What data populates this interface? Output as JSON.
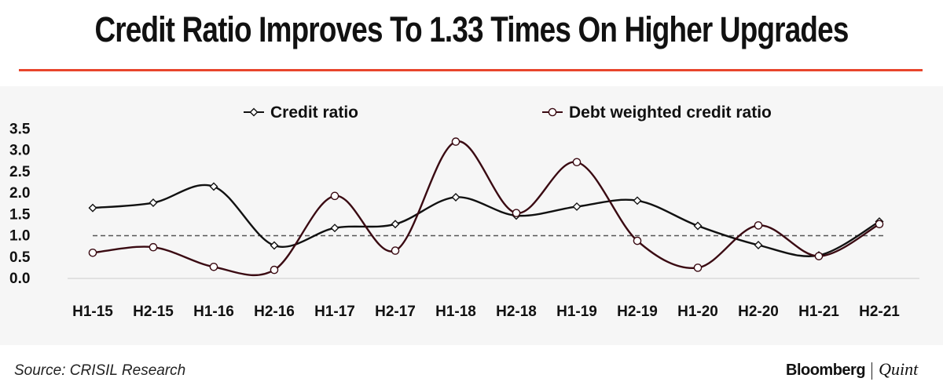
{
  "title": "Credit Ratio Improves To 1.33 Times On Higher Upgrades",
  "source": "Source: CRISIL Research",
  "logo": {
    "brand": "Bloomberg",
    "sub": "Quint"
  },
  "colors": {
    "accent_rule": "#e8452c",
    "series1": "#111111",
    "series2": "#3a0a12",
    "reference_line": "#555555"
  },
  "chart_data": {
    "type": "line",
    "categories": [
      "H1-15",
      "H2-15",
      "H1-16",
      "H2-16",
      "H1-17",
      "H2-17",
      "H1-18",
      "H2-18",
      "H1-19",
      "H2-19",
      "H1-20",
      "H2-20",
      "H1-21",
      "H2-21"
    ],
    "series": [
      {
        "name": "Credit ratio",
        "marker": "diamond",
        "color": "#111111",
        "values": [
          1.65,
          1.77,
          2.15,
          0.77,
          1.18,
          1.27,
          1.9,
          1.47,
          1.68,
          1.82,
          1.23,
          0.78,
          0.54,
          1.33
        ]
      },
      {
        "name": "Debt weighted credit ratio",
        "marker": "circle",
        "color": "#3a0a12",
        "values": [
          0.6,
          0.73,
          0.27,
          0.2,
          1.93,
          0.65,
          3.2,
          1.53,
          2.72,
          0.88,
          0.25,
          1.24,
          0.52,
          1.27
        ]
      }
    ],
    "reference_line": {
      "y": 1.0,
      "style": "dashed"
    },
    "yticks": [
      "3.5",
      "3.0",
      "2.5",
      "2.0",
      "1.5",
      "1.0",
      "0.5",
      "0.0"
    ],
    "ylim": [
      0,
      3.5
    ],
    "xlabel": "",
    "ylabel": "",
    "legend": "top-center",
    "grid": false
  }
}
